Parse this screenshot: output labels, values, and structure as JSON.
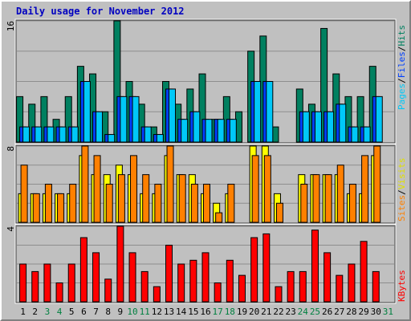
{
  "title": "Daily usage for November 2012",
  "colors": {
    "background": "#c0c0c0",
    "plot_bg": "#c0c0c0",
    "grid": "#8e8e8e",
    "title": "#0000c0",
    "pages": "#00c8f8",
    "files": "#0040ff",
    "hits": "#008060",
    "sites": "#ff8000",
    "visits": "#ffff00",
    "kbytes": "#ff0000",
    "weekend": "#008040",
    "weekday": "#000000"
  },
  "legend": {
    "top": {
      "pages": "Pages",
      "sep1": "/",
      "files": "Files",
      "sep2": "/",
      "hits": "Hits"
    },
    "middle": {
      "sites": "Sites",
      "sep1": "/",
      "visits": "Visits"
    },
    "bottom": {
      "kbytes": "KBytes"
    }
  },
  "chart_data": {
    "type": "bar",
    "categories": [
      "1",
      "2",
      "3",
      "4",
      "5",
      "6",
      "7",
      "8",
      "9",
      "10",
      "11",
      "12",
      "13",
      "14",
      "15",
      "16",
      "17",
      "18",
      "19",
      "20",
      "21",
      "22",
      "23",
      "24",
      "25",
      "26",
      "27",
      "28",
      "29",
      "30",
      "31"
    ],
    "weekend_days": [
      "3",
      "4",
      "10",
      "11",
      "17",
      "18",
      "24",
      "25",
      "31"
    ],
    "panels": [
      {
        "name": "hits-files-pages",
        "ymax_label": "16",
        "ymax": 16,
        "series": [
          {
            "name": "Hits",
            "color_key": "hits",
            "values": [
              6,
              5,
              6,
              3,
              6,
              10,
              9,
              4,
              16,
              8,
              5,
              2,
              8,
              5,
              7,
              9,
              3,
              6,
              4,
              12,
              14,
              2,
              0,
              7,
              5,
              15,
              9,
              6,
              6,
              10,
              0
            ]
          },
          {
            "name": "Files",
            "color_key": "files",
            "values": [
              2,
              2,
              2,
              2,
              2,
              8,
              4,
              1,
              6,
              6,
              2,
              1,
              7,
              3,
              4,
              3,
              3,
              3,
              0,
              8,
              8,
              0,
              0,
              4,
              4,
              4,
              5,
              2,
              2,
              6,
              0
            ]
          },
          {
            "name": "Pages",
            "color_key": "pages",
            "values": [
              2,
              2,
              2,
              2,
              2,
              8,
              4,
              1,
              6,
              6,
              2,
              1,
              7,
              3,
              4,
              3,
              3,
              3,
              0,
              8,
              8,
              0,
              0,
              4,
              4,
              4,
              5,
              2,
              2,
              6,
              0
            ]
          }
        ]
      },
      {
        "name": "visits-sites",
        "ymax_label": "8",
        "ymax": 8,
        "series": [
          {
            "name": "Visits",
            "color_key": "visits",
            "values": [
              3,
              3,
              3,
              3,
              3,
              7,
              5,
              5,
              6,
              5,
              3,
              3,
              7,
              5,
              5,
              3,
              2,
              3,
              0,
              8,
              8,
              3,
              0,
              5,
              5,
              5,
              5,
              3,
              3,
              7,
              0
            ]
          },
          {
            "name": "Sites",
            "color_key": "sites",
            "values": [
              6,
              3,
              4,
              3,
              4,
              8,
              7,
              4,
              5,
              7,
              5,
              4,
              8,
              5,
              4,
              4,
              1,
              4,
              0,
              7,
              7,
              2,
              0,
              4,
              5,
              5,
              6,
              4,
              7,
              8,
              0
            ]
          }
        ]
      },
      {
        "name": "kbytes",
        "ymax_label": "4",
        "ymax": 4,
        "series": [
          {
            "name": "KBytes",
            "color_key": "kbytes",
            "values": [
              2.0,
              1.6,
              2.0,
              1.0,
              2.0,
              3.4,
              2.6,
              1.2,
              4.0,
              2.6,
              1.6,
              0.8,
              3.0,
              2.0,
              2.2,
              2.6,
              1.0,
              2.2,
              1.4,
              3.4,
              3.6,
              0.8,
              1.6,
              1.6,
              3.8,
              2.6,
              1.4,
              2.0,
              3.2,
              1.6,
              0.0
            ]
          }
        ]
      }
    ],
    "xlabel": "",
    "ylabel": ""
  }
}
